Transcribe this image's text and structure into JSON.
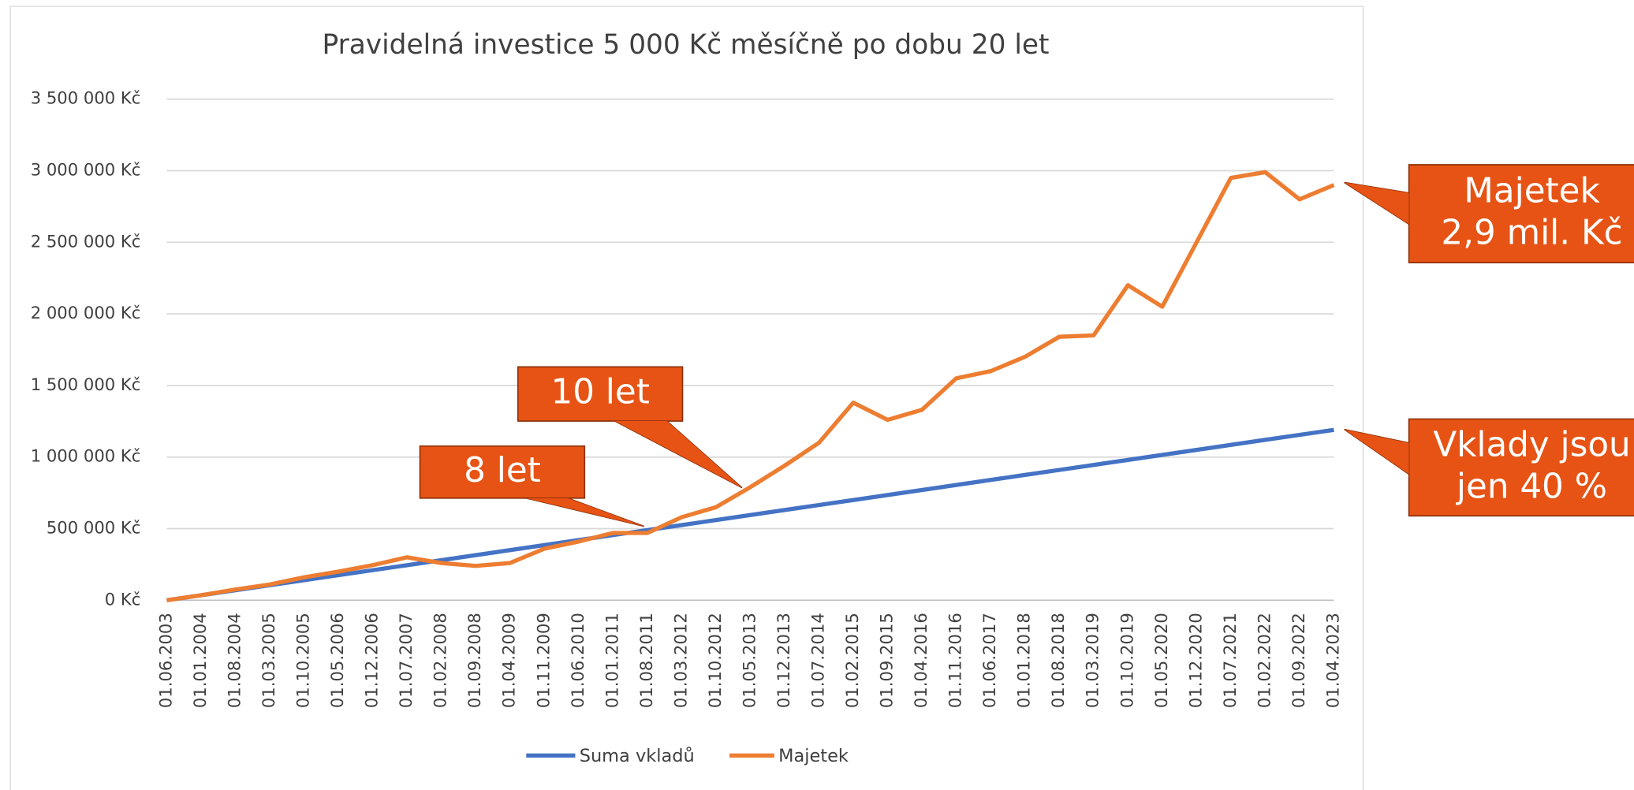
{
  "chart_data": {
    "type": "line",
    "title": "Pravidelná investice 5 000 Kč měsíčně po dobu 20 let",
    "categories": [
      "01.06.2003",
      "01.01.2004",
      "01.08.2004",
      "01.03.2005",
      "01.10.2005",
      "01.05.2006",
      "01.12.2006",
      "01.07.2007",
      "01.02.2008",
      "01.09.2008",
      "01.04.2009",
      "01.11.2009",
      "01.06.2010",
      "01.01.2011",
      "01.08.2011",
      "01.03.2012",
      "01.10.2012",
      "01.05.2013",
      "01.12.2013",
      "01.07.2014",
      "01.02.2015",
      "01.09.2015",
      "01.04.2016",
      "01.11.2016",
      "01.06.2017",
      "01.01.2018",
      "01.08.2018",
      "01.03.2019",
      "01.10.2019",
      "01.05.2020",
      "01.12.2020",
      "01.07.2021",
      "01.02.2022",
      "01.09.2022",
      "01.04.2023"
    ],
    "series": [
      {
        "name": "Suma vkladů",
        "color": "#4472c4",
        "values": [
          0,
          35000,
          70000,
          105000,
          140000,
          175000,
          210000,
          245000,
          280000,
          315000,
          350000,
          385000,
          420000,
          455000,
          490000,
          525000,
          560000,
          595000,
          630000,
          665000,
          700000,
          735000,
          770000,
          805000,
          840000,
          875000,
          910000,
          945000,
          980000,
          1015000,
          1050000,
          1085000,
          1120000,
          1155000,
          1190000
        ]
      },
      {
        "name": "Majetek",
        "color": "#ed7d31",
        "values": [
          0,
          35000,
          75000,
          110000,
          160000,
          200000,
          245000,
          300000,
          260000,
          240000,
          260000,
          360000,
          410000,
          470000,
          470000,
          580000,
          650000,
          790000,
          940000,
          1100000,
          1380000,
          1260000,
          1330000,
          1550000,
          1600000,
          1700000,
          1840000,
          1850000,
          2200000,
          2050000,
          2500000,
          2950000,
          2990000,
          2800000,
          2900000
        ]
      }
    ],
    "ylim": [
      0,
      3500000
    ],
    "yticks": [
      {
        "value": 0,
        "label": "0 Kč"
      },
      {
        "value": 500000,
        "label": "500 000 Kč"
      },
      {
        "value": 1000000,
        "label": "1 000 000 Kč"
      },
      {
        "value": 1500000,
        "label": "1 500 000 Kč"
      },
      {
        "value": 2000000,
        "label": "2 000 000 Kč"
      },
      {
        "value": 2500000,
        "label": "2 500 000 Kč"
      },
      {
        "value": 3000000,
        "label": "3 000 000 Kč"
      },
      {
        "value": 3500000,
        "label": "3 500 000 Kč"
      }
    ],
    "grid": true,
    "legend": "bottom",
    "annotations": [
      {
        "lines": [
          "10 let"
        ],
        "color": "#e65314"
      },
      {
        "lines": [
          "8 let"
        ],
        "color": "#e65314"
      },
      {
        "lines": [
          "Majetek",
          "2,9 mil. Kč"
        ],
        "color": "#e65314"
      },
      {
        "lines": [
          "Vklady jsou",
          "jen 40 %"
        ],
        "color": "#e65314"
      }
    ]
  }
}
